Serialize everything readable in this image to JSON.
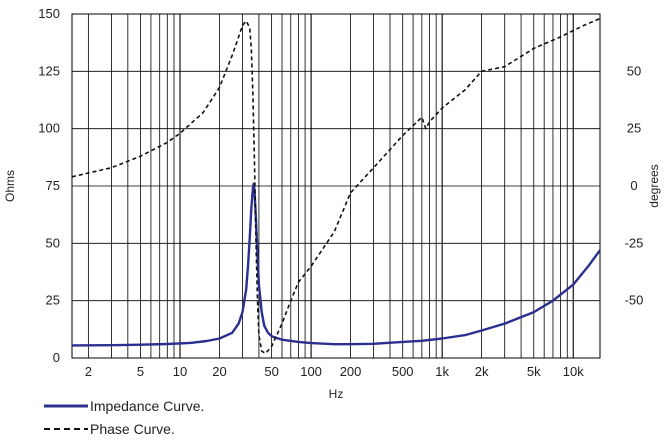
{
  "chart_data": {
    "type": "line",
    "title": "",
    "xlabel": "Hz",
    "ylabel_left": "Ohms",
    "ylabel_right": "degrees",
    "x_scale": "log",
    "xlim": [
      1.5,
      16000
    ],
    "ylim_left": [
      0,
      150
    ],
    "ylim_right": [
      -75,
      75
    ],
    "grid": true,
    "legend_position": "bottom-left",
    "x_tick_labels": [
      {
        "x": 2,
        "label": "2"
      },
      {
        "x": 5,
        "label": "5"
      },
      {
        "x": 10,
        "label": "10"
      },
      {
        "x": 20,
        "label": "20"
      },
      {
        "x": 50,
        "label": "50"
      },
      {
        "x": 100,
        "label": "100"
      },
      {
        "x": 200,
        "label": "200"
      },
      {
        "x": 500,
        "label": "500"
      },
      {
        "x": 1000,
        "label": "1k"
      },
      {
        "x": 2000,
        "label": "2k"
      },
      {
        "x": 5000,
        "label": "5k"
      },
      {
        "x": 10000,
        "label": "10k"
      }
    ],
    "y_left_ticks": [
      0,
      25,
      50,
      75,
      100,
      125,
      150
    ],
    "y_right_ticks": [
      -50,
      -25,
      0,
      25,
      50
    ],
    "series": [
      {
        "name": "Impedance Curve.",
        "axis": "left",
        "color": "#2b2f8f",
        "style": "solid",
        "points": [
          [
            1.5,
            5.5
          ],
          [
            3,
            5.6
          ],
          [
            5,
            5.8
          ],
          [
            8,
            6.1
          ],
          [
            12,
            6.6
          ],
          [
            16,
            7.4
          ],
          [
            20,
            8.5
          ],
          [
            25,
            11
          ],
          [
            28,
            15
          ],
          [
            30,
            20
          ],
          [
            32,
            30
          ],
          [
            33,
            40
          ],
          [
            34,
            52
          ],
          [
            35,
            65
          ],
          [
            36,
            74
          ],
          [
            36.5,
            76
          ],
          [
            37,
            73
          ],
          [
            38,
            60
          ],
          [
            39,
            45
          ],
          [
            40,
            32
          ],
          [
            42,
            20
          ],
          [
            44,
            14
          ],
          [
            47,
            11
          ],
          [
            50,
            9.5
          ],
          [
            60,
            8
          ],
          [
            80,
            7
          ],
          [
            100,
            6.5
          ],
          [
            150,
            6
          ],
          [
            200,
            6
          ],
          [
            300,
            6.2
          ],
          [
            500,
            7
          ],
          [
            700,
            7.5
          ],
          [
            1000,
            8.5
          ],
          [
            1500,
            10
          ],
          [
            2000,
            12
          ],
          [
            3000,
            15
          ],
          [
            5000,
            20
          ],
          [
            7000,
            25
          ],
          [
            10000,
            32
          ],
          [
            13000,
            40
          ],
          [
            16000,
            47
          ]
        ]
      },
      {
        "name": "Phase Curve.",
        "axis": "right",
        "color": "#111111",
        "style": "dashed",
        "points": [
          [
            1.5,
            4
          ],
          [
            3,
            8
          ],
          [
            5,
            13
          ],
          [
            8,
            19
          ],
          [
            10,
            23
          ],
          [
            15,
            32
          ],
          [
            20,
            43
          ],
          [
            25,
            57
          ],
          [
            28,
            65
          ],
          [
            30,
            70
          ],
          [
            32,
            72
          ],
          [
            34,
            69
          ],
          [
            35,
            60
          ],
          [
            36,
            40
          ],
          [
            37,
            10
          ],
          [
            38,
            -25
          ],
          [
            39,
            -50
          ],
          [
            40,
            -65
          ],
          [
            42,
            -72
          ],
          [
            45,
            -73
          ],
          [
            50,
            -70
          ],
          [
            60,
            -60
          ],
          [
            70,
            -50
          ],
          [
            80,
            -42
          ],
          [
            100,
            -35
          ],
          [
            150,
            -20
          ],
          [
            200,
            -3
          ],
          [
            300,
            8
          ],
          [
            500,
            22
          ],
          [
            700,
            30
          ],
          [
            750,
            25
          ],
          [
            800,
            28
          ],
          [
            1000,
            34
          ],
          [
            1500,
            42
          ],
          [
            2000,
            50
          ],
          [
            3000,
            52
          ],
          [
            5000,
            60
          ],
          [
            8000,
            65
          ],
          [
            12000,
            70
          ],
          [
            16000,
            73
          ]
        ]
      }
    ]
  }
}
